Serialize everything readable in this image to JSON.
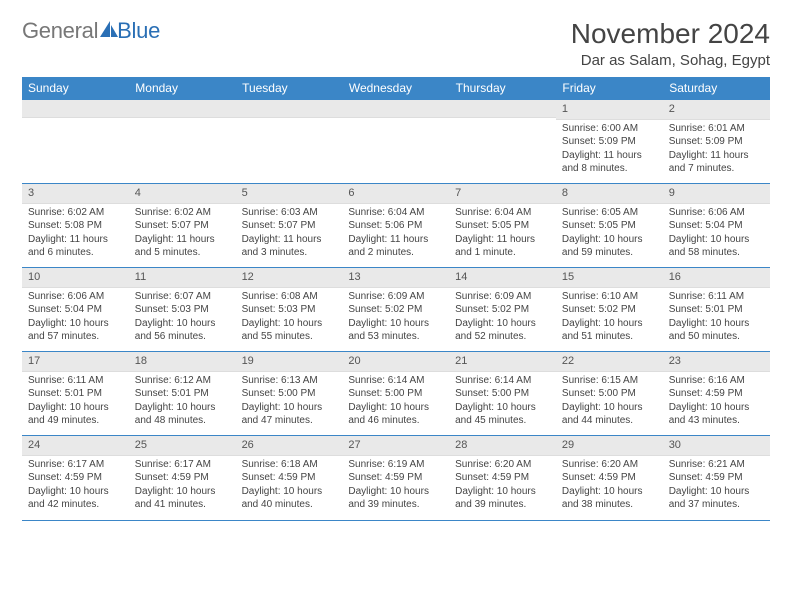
{
  "brand": {
    "part1": "General",
    "part2": "Blue"
  },
  "title": "November 2024",
  "location": "Dar as Salam, Sohag, Egypt",
  "colors": {
    "accent": "#3b86c7",
    "daynum_bg": "#e9e9e9"
  },
  "weekdays": [
    "Sunday",
    "Monday",
    "Tuesday",
    "Wednesday",
    "Thursday",
    "Friday",
    "Saturday"
  ],
  "weeks": [
    [
      {
        "n": "",
        "sunrise": "",
        "sunset": "",
        "daylight": ""
      },
      {
        "n": "",
        "sunrise": "",
        "sunset": "",
        "daylight": ""
      },
      {
        "n": "",
        "sunrise": "",
        "sunset": "",
        "daylight": ""
      },
      {
        "n": "",
        "sunrise": "",
        "sunset": "",
        "daylight": ""
      },
      {
        "n": "",
        "sunrise": "",
        "sunset": "",
        "daylight": ""
      },
      {
        "n": "1",
        "sunrise": "Sunrise: 6:00 AM",
        "sunset": "Sunset: 5:09 PM",
        "daylight": "Daylight: 11 hours and 8 minutes."
      },
      {
        "n": "2",
        "sunrise": "Sunrise: 6:01 AM",
        "sunset": "Sunset: 5:09 PM",
        "daylight": "Daylight: 11 hours and 7 minutes."
      }
    ],
    [
      {
        "n": "3",
        "sunrise": "Sunrise: 6:02 AM",
        "sunset": "Sunset: 5:08 PM",
        "daylight": "Daylight: 11 hours and 6 minutes."
      },
      {
        "n": "4",
        "sunrise": "Sunrise: 6:02 AM",
        "sunset": "Sunset: 5:07 PM",
        "daylight": "Daylight: 11 hours and 5 minutes."
      },
      {
        "n": "5",
        "sunrise": "Sunrise: 6:03 AM",
        "sunset": "Sunset: 5:07 PM",
        "daylight": "Daylight: 11 hours and 3 minutes."
      },
      {
        "n": "6",
        "sunrise": "Sunrise: 6:04 AM",
        "sunset": "Sunset: 5:06 PM",
        "daylight": "Daylight: 11 hours and 2 minutes."
      },
      {
        "n": "7",
        "sunrise": "Sunrise: 6:04 AM",
        "sunset": "Sunset: 5:05 PM",
        "daylight": "Daylight: 11 hours and 1 minute."
      },
      {
        "n": "8",
        "sunrise": "Sunrise: 6:05 AM",
        "sunset": "Sunset: 5:05 PM",
        "daylight": "Daylight: 10 hours and 59 minutes."
      },
      {
        "n": "9",
        "sunrise": "Sunrise: 6:06 AM",
        "sunset": "Sunset: 5:04 PM",
        "daylight": "Daylight: 10 hours and 58 minutes."
      }
    ],
    [
      {
        "n": "10",
        "sunrise": "Sunrise: 6:06 AM",
        "sunset": "Sunset: 5:04 PM",
        "daylight": "Daylight: 10 hours and 57 minutes."
      },
      {
        "n": "11",
        "sunrise": "Sunrise: 6:07 AM",
        "sunset": "Sunset: 5:03 PM",
        "daylight": "Daylight: 10 hours and 56 minutes."
      },
      {
        "n": "12",
        "sunrise": "Sunrise: 6:08 AM",
        "sunset": "Sunset: 5:03 PM",
        "daylight": "Daylight: 10 hours and 55 minutes."
      },
      {
        "n": "13",
        "sunrise": "Sunrise: 6:09 AM",
        "sunset": "Sunset: 5:02 PM",
        "daylight": "Daylight: 10 hours and 53 minutes."
      },
      {
        "n": "14",
        "sunrise": "Sunrise: 6:09 AM",
        "sunset": "Sunset: 5:02 PM",
        "daylight": "Daylight: 10 hours and 52 minutes."
      },
      {
        "n": "15",
        "sunrise": "Sunrise: 6:10 AM",
        "sunset": "Sunset: 5:02 PM",
        "daylight": "Daylight: 10 hours and 51 minutes."
      },
      {
        "n": "16",
        "sunrise": "Sunrise: 6:11 AM",
        "sunset": "Sunset: 5:01 PM",
        "daylight": "Daylight: 10 hours and 50 minutes."
      }
    ],
    [
      {
        "n": "17",
        "sunrise": "Sunrise: 6:11 AM",
        "sunset": "Sunset: 5:01 PM",
        "daylight": "Daylight: 10 hours and 49 minutes."
      },
      {
        "n": "18",
        "sunrise": "Sunrise: 6:12 AM",
        "sunset": "Sunset: 5:01 PM",
        "daylight": "Daylight: 10 hours and 48 minutes."
      },
      {
        "n": "19",
        "sunrise": "Sunrise: 6:13 AM",
        "sunset": "Sunset: 5:00 PM",
        "daylight": "Daylight: 10 hours and 47 minutes."
      },
      {
        "n": "20",
        "sunrise": "Sunrise: 6:14 AM",
        "sunset": "Sunset: 5:00 PM",
        "daylight": "Daylight: 10 hours and 46 minutes."
      },
      {
        "n": "21",
        "sunrise": "Sunrise: 6:14 AM",
        "sunset": "Sunset: 5:00 PM",
        "daylight": "Daylight: 10 hours and 45 minutes."
      },
      {
        "n": "22",
        "sunrise": "Sunrise: 6:15 AM",
        "sunset": "Sunset: 5:00 PM",
        "daylight": "Daylight: 10 hours and 44 minutes."
      },
      {
        "n": "23",
        "sunrise": "Sunrise: 6:16 AM",
        "sunset": "Sunset: 4:59 PM",
        "daylight": "Daylight: 10 hours and 43 minutes."
      }
    ],
    [
      {
        "n": "24",
        "sunrise": "Sunrise: 6:17 AM",
        "sunset": "Sunset: 4:59 PM",
        "daylight": "Daylight: 10 hours and 42 minutes."
      },
      {
        "n": "25",
        "sunrise": "Sunrise: 6:17 AM",
        "sunset": "Sunset: 4:59 PM",
        "daylight": "Daylight: 10 hours and 41 minutes."
      },
      {
        "n": "26",
        "sunrise": "Sunrise: 6:18 AM",
        "sunset": "Sunset: 4:59 PM",
        "daylight": "Daylight: 10 hours and 40 minutes."
      },
      {
        "n": "27",
        "sunrise": "Sunrise: 6:19 AM",
        "sunset": "Sunset: 4:59 PM",
        "daylight": "Daylight: 10 hours and 39 minutes."
      },
      {
        "n": "28",
        "sunrise": "Sunrise: 6:20 AM",
        "sunset": "Sunset: 4:59 PM",
        "daylight": "Daylight: 10 hours and 39 minutes."
      },
      {
        "n": "29",
        "sunrise": "Sunrise: 6:20 AM",
        "sunset": "Sunset: 4:59 PM",
        "daylight": "Daylight: 10 hours and 38 minutes."
      },
      {
        "n": "30",
        "sunrise": "Sunrise: 6:21 AM",
        "sunset": "Sunset: 4:59 PM",
        "daylight": "Daylight: 10 hours and 37 minutes."
      }
    ]
  ]
}
